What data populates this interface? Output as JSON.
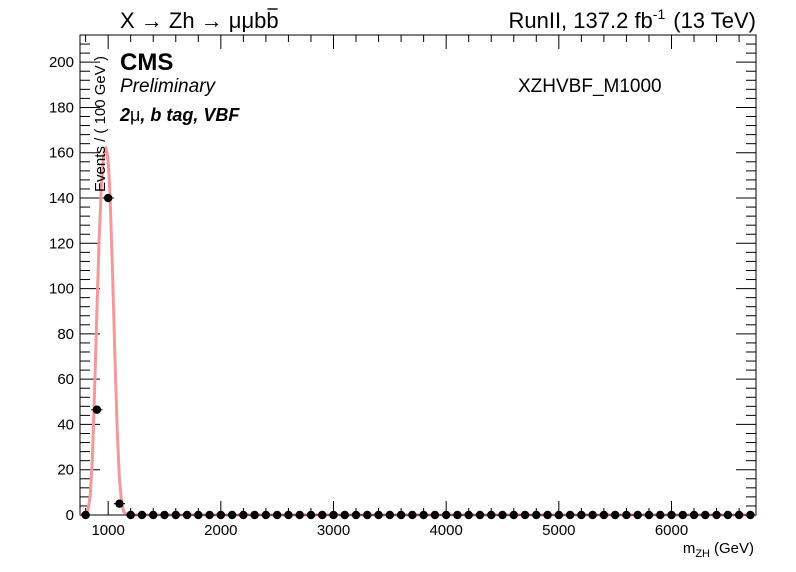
{
  "header": {
    "process_prefix": "X → Zh → ",
    "process_suffix": "μμb",
    "process_bbar": "b",
    "lumi_prefix": "RunII, 137.2 fb",
    "lumi_exp": "-1",
    "lumi_suffix": "(13 TeV)"
  },
  "labels": {
    "experiment": "CMS",
    "status": "Preliminary",
    "category_num": "2",
    "category_mu": "μ",
    "category_rest": ", b tag, VBF",
    "sample": "XZHVBF_M1000"
  },
  "colors": {
    "curve": "#f4999b",
    "points": "#000000",
    "frame": "#000000"
  },
  "chart_data": {
    "type": "scatter",
    "xlabel_main": "m",
    "xlabel_sub": "ZH",
    "xlabel_unit": "(GeV)",
    "ylabel": "Events / ( 100 GeV )",
    "xlim": [
      750,
      6750
    ],
    "ylim": [
      0,
      212
    ],
    "x_ticks": [
      1000,
      2000,
      3000,
      4000,
      5000,
      6000
    ],
    "y_ticks": [
      0,
      20,
      40,
      60,
      80,
      100,
      120,
      140,
      160,
      180,
      200
    ],
    "bin_width": 100,
    "series": [
      {
        "kind": "points",
        "x": [
          800,
          900,
          1000,
          1100,
          1200,
          1300,
          1400,
          1500,
          1600,
          1700,
          1800,
          1900,
          2000,
          2100,
          2200,
          2300,
          2400,
          2500,
          2600,
          2700,
          2800,
          2900,
          3000,
          3100,
          3200,
          3300,
          3400,
          3500,
          3600,
          3700,
          3800,
          3900,
          4000,
          4100,
          4200,
          4300,
          4400,
          4500,
          4600,
          4700,
          4800,
          4900,
          5000,
          5100,
          5200,
          5300,
          5400,
          5500,
          5600,
          5700,
          5800,
          5900,
          6000,
          6100,
          6200,
          6300,
          6400,
          6500,
          6600,
          6700
        ],
        "y": [
          0,
          46.5,
          140,
          5,
          0,
          0,
          0,
          0,
          0,
          0,
          0,
          0,
          0,
          0,
          0,
          0,
          0,
          0,
          0,
          0,
          0,
          0,
          0,
          0,
          0,
          0,
          0,
          0,
          0,
          0,
          0,
          0,
          0,
          0,
          0,
          0,
          0,
          0,
          0,
          0,
          0,
          0,
          0,
          0,
          0,
          0,
          0,
          0,
          0,
          0,
          0,
          0,
          0,
          0,
          0,
          0,
          0,
          0,
          0,
          0
        ],
        "yerr": [
          0,
          0.8,
          1.8,
          0.5,
          0,
          0,
          0,
          0,
          0,
          0,
          0,
          0,
          0,
          0,
          0,
          0,
          0,
          0,
          0,
          0,
          0,
          0,
          0,
          0,
          0,
          0,
          0,
          0,
          0,
          0,
          0,
          0,
          0,
          0,
          0,
          0,
          0,
          0,
          0,
          0,
          0,
          0,
          0,
          0,
          0,
          0,
          0,
          0,
          0,
          0,
          0,
          0,
          0,
          0,
          0,
          0,
          0,
          0,
          0,
          0
        ]
      },
      {
        "kind": "curve",
        "x": [
          750,
          800,
          820,
          840,
          860,
          880,
          900,
          920,
          940,
          960,
          970,
          980,
          990,
          1000,
          1010,
          1020,
          1040,
          1060,
          1080,
          1100,
          1120,
          1140,
          1160,
          1180,
          1200,
          1250,
          6750
        ],
        "y": [
          0,
          0.5,
          2,
          8,
          25,
          56,
          90,
          122,
          146,
          159,
          161.5,
          162,
          160,
          156,
          148,
          136,
          105,
          70,
          38,
          16,
          5,
          1.3,
          0.3,
          0.05,
          0,
          0,
          0
        ]
      }
    ]
  }
}
